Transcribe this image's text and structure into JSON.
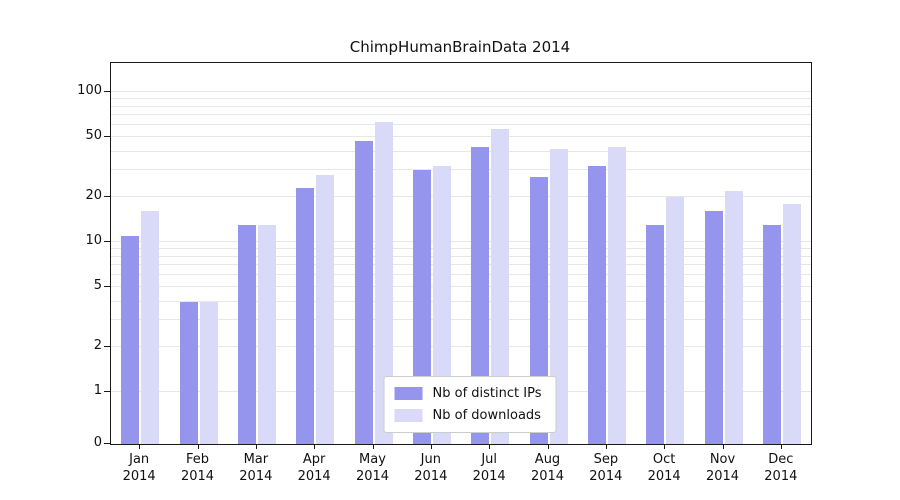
{
  "title": "ChimpHumanBrainData 2014",
  "chart_data": {
    "type": "bar",
    "title": "ChimpHumanBrainData 2014",
    "yscale": "symlog",
    "grid": true,
    "legend_position": "lower center",
    "ylim": [
      0,
      130
    ],
    "yticks": [
      0,
      1,
      2,
      5,
      10,
      20,
      50,
      100
    ],
    "categories": [
      "Jan 2014",
      "Feb 2014",
      "Mar 2014",
      "Apr 2014",
      "May 2014",
      "Jun 2014",
      "Jul 2014",
      "Aug 2014",
      "Sep 2014",
      "Oct 2014",
      "Nov 2014",
      "Dec 2014"
    ],
    "series": [
      {
        "name": "Nb of distinct IPs",
        "color": "#9595ed",
        "values": [
          11,
          4,
          13,
          23,
          47,
          30,
          43,
          27,
          32,
          13,
          16,
          13
        ]
      },
      {
        "name": "Nb of downloads",
        "color": "#d9d9f8",
        "values": [
          16,
          4,
          13,
          28,
          63,
          32,
          57,
          42,
          43,
          20,
          22,
          18
        ]
      }
    ]
  }
}
